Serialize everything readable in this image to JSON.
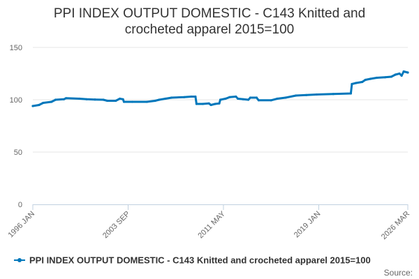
{
  "chart_data": {
    "type": "line",
    "title_lines": [
      "PPI INDEX OUTPUT DOMESTIC - C143 Knitted and",
      "crocheted apparel 2015=100"
    ],
    "xlabel": "",
    "ylabel": "",
    "ylim": [
      0,
      150
    ],
    "y_ticks": [
      "0",
      "50",
      "100",
      "150"
    ],
    "x_range_months": [
      0,
      362
    ],
    "x_ticks": [
      {
        "label": "1996 JAN",
        "month": 0
      },
      {
        "label": "2003 SEP",
        "month": 92
      },
      {
        "label": "2011 MAY",
        "month": 184
      },
      {
        "label": "2019 JAN",
        "month": 276
      },
      {
        "label": "2026 MAR",
        "month": 362
      }
    ],
    "grid": true,
    "series": [
      {
        "name": "PPI INDEX OUTPUT DOMESTIC - C143 Knitted and crocheted apparel 2015=100",
        "color": "#0077bb",
        "points": [
          [
            0,
            94
          ],
          [
            6,
            95
          ],
          [
            10,
            97
          ],
          [
            18,
            98
          ],
          [
            22,
            100
          ],
          [
            30,
            100.5
          ],
          [
            32,
            101.5
          ],
          [
            45,
            101
          ],
          [
            52,
            100.5
          ],
          [
            60,
            100.2
          ],
          [
            68,
            100
          ],
          [
            72,
            99
          ],
          [
            80,
            99
          ],
          [
            84,
            101
          ],
          [
            87,
            100.5
          ],
          [
            88,
            98
          ],
          [
            96,
            98
          ],
          [
            110,
            98
          ],
          [
            118,
            99
          ],
          [
            122,
            100
          ],
          [
            128,
            101
          ],
          [
            134,
            102
          ],
          [
            146,
            102.5
          ],
          [
            153,
            103
          ],
          [
            157,
            103
          ],
          [
            158,
            96
          ],
          [
            164,
            96
          ],
          [
            170,
            96.5
          ],
          [
            172,
            95
          ],
          [
            176,
            96
          ],
          [
            180,
            96.5
          ],
          [
            181,
            100
          ],
          [
            186,
            101
          ],
          [
            190,
            102.5
          ],
          [
            196,
            103
          ],
          [
            198,
            101
          ],
          [
            203,
            100.5
          ],
          [
            208,
            100
          ],
          [
            210,
            102
          ],
          [
            216,
            102
          ],
          [
            218,
            99.5
          ],
          [
            230,
            99.5
          ],
          [
            236,
            101
          ],
          [
            244,
            102
          ],
          [
            254,
            104
          ],
          [
            264,
            104.5
          ],
          [
            274,
            105
          ],
          [
            290,
            105.5
          ],
          [
            307,
            106
          ],
          [
            308,
            115
          ],
          [
            312,
            116
          ],
          [
            318,
            117
          ],
          [
            321,
            119
          ],
          [
            326,
            120
          ],
          [
            332,
            121
          ],
          [
            340,
            121.5
          ],
          [
            346,
            122
          ],
          [
            350,
            124
          ],
          [
            354,
            125
          ],
          [
            356,
            123
          ],
          [
            358,
            127
          ],
          [
            362,
            126
          ]
        ]
      }
    ],
    "legend": {
      "position": "bottom",
      "label": "PPI INDEX OUTPUT DOMESTIC - C143 Knitted and crocheted apparel 2015=100"
    },
    "source_label": "Source:"
  }
}
